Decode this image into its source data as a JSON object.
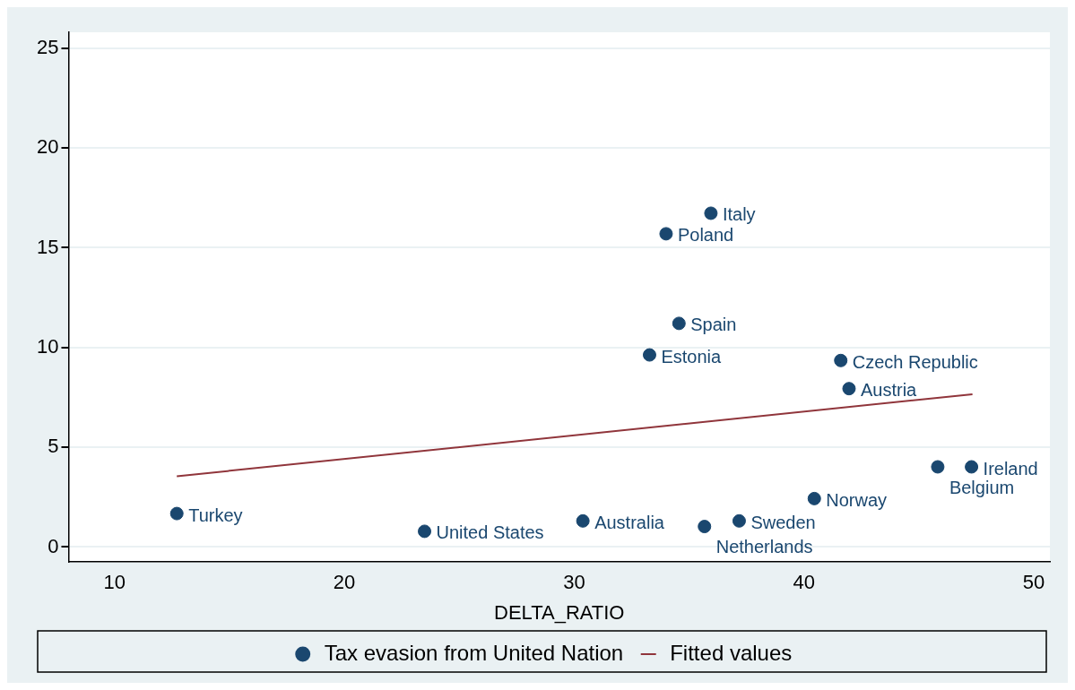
{
  "chart_data": {
    "type": "scatter",
    "xlabel": "DELTA_RATIO",
    "xlim": [
      8,
      50.7
    ],
    "xticks": [
      10,
      20,
      30,
      40,
      50
    ],
    "ylim": [
      -0.75,
      25.8
    ],
    "yticks": [
      0,
      5,
      10,
      15,
      20,
      25
    ],
    "grid": "y",
    "legend": "bottom",
    "marker": "circle",
    "series": [
      {
        "name": "Tax evasion from United Nation",
        "type": "scatter",
        "color": "#1a476f",
        "x": [
          12.71,
          23.49,
          30.38,
          35.67,
          37.18,
          40.45,
          45.82,
          47.29,
          33.28,
          34.56,
          34.0,
          35.95,
          41.6,
          41.96
        ],
        "values": [
          1.68,
          0.79,
          1.31,
          1.03,
          1.31,
          2.43,
          4.02,
          4.02,
          9.63,
          11.21,
          15.7,
          16.73,
          9.35,
          7.94
        ]
      },
      {
        "name": "Fitted values",
        "type": "line",
        "color": "#90353b",
        "marker": "none",
        "x": [
          12.71,
          47.33
        ],
        "values": [
          3.55,
          7.66
        ]
      }
    ],
    "annotations": [
      {
        "text": "Turkey",
        "x": 12.71,
        "y": 1.68
      },
      {
        "text": "United States",
        "x": 23.49,
        "y": 0.79
      },
      {
        "text": "Australia",
        "x": 30.38,
        "y": 1.31
      },
      {
        "text": "Netherlands",
        "x": 35.67,
        "y": 1.03
      },
      {
        "text": "Sweden",
        "x": 37.18,
        "y": 1.31
      },
      {
        "text": "Norway",
        "x": 40.45,
        "y": 2.43
      },
      {
        "text": "Belgium",
        "x": 45.82,
        "y": 4.02
      },
      {
        "text": "Ireland",
        "x": 47.29,
        "y": 4.02
      },
      {
        "text": "Estonia",
        "x": 33.28,
        "y": 9.63
      },
      {
        "text": "Spain",
        "x": 34.56,
        "y": 11.21
      },
      {
        "text": "Poland",
        "x": 34.0,
        "y": 15.7
      },
      {
        "text": "Italy",
        "x": 35.95,
        "y": 16.73
      },
      {
        "text": "Czech Republic",
        "x": 41.6,
        "y": 9.35
      },
      {
        "text": "Austria",
        "x": 41.96,
        "y": 7.94
      }
    ]
  }
}
